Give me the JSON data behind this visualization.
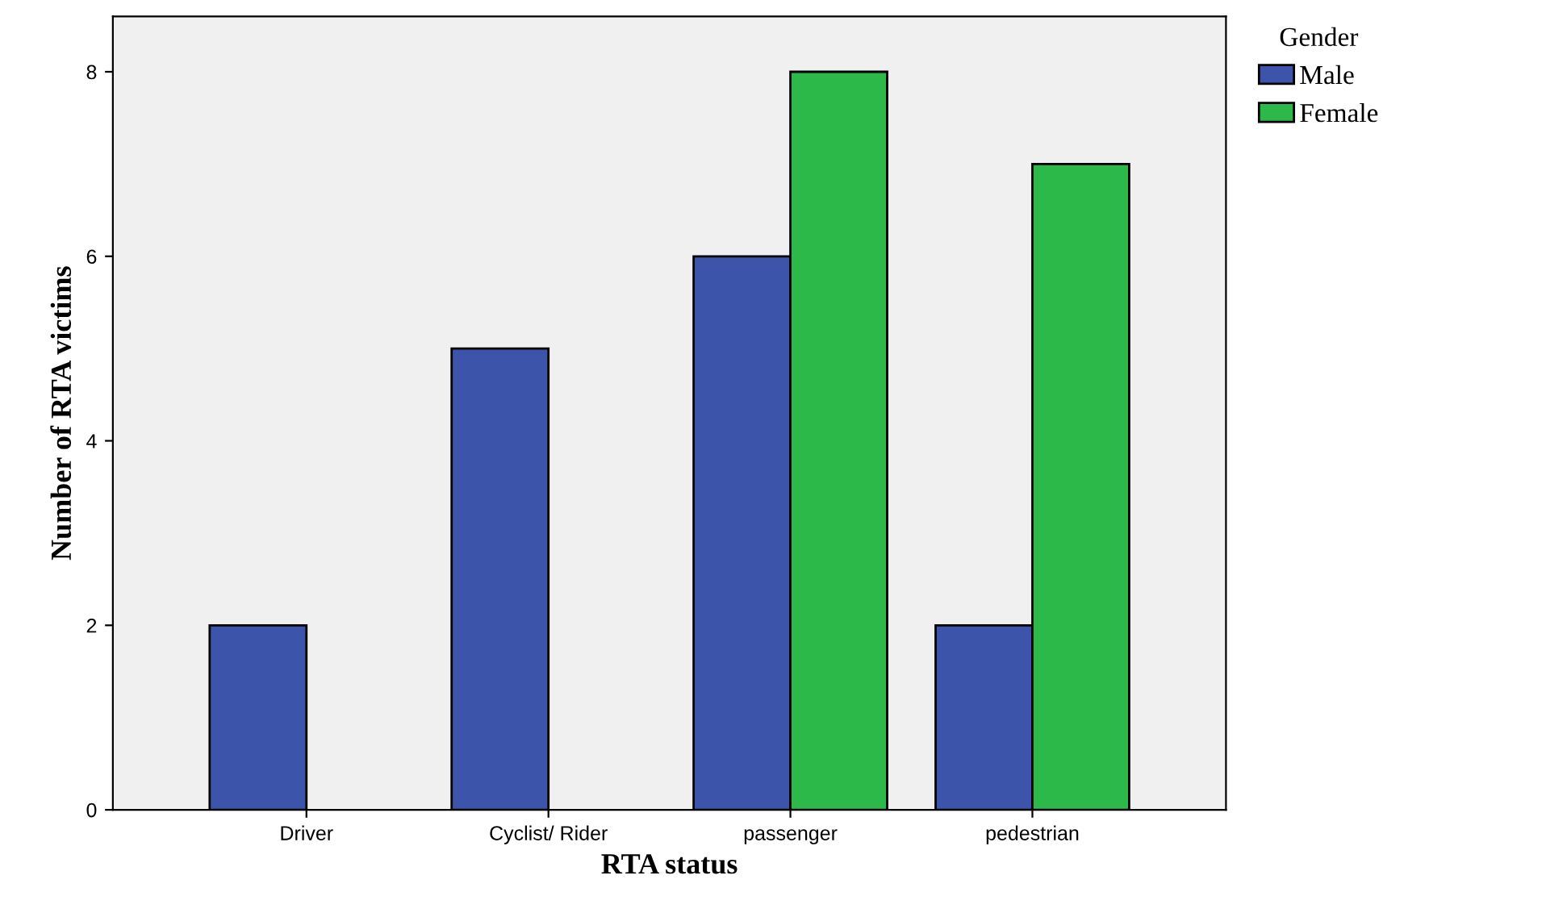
{
  "chart_data": {
    "type": "bar",
    "xlabel": "RTA status",
    "ylabel": "Number of RTA victims",
    "legend_title": "Gender",
    "categories": [
      "Driver",
      "Cyclist/ Rider",
      "passenger",
      "pedestrian"
    ],
    "series": [
      {
        "name": "Male",
        "color": "#3c55aa",
        "values": [
          2,
          5,
          6,
          2
        ]
      },
      {
        "name": "Female",
        "color": "#2db84a",
        "values": [
          null,
          null,
          8,
          7
        ]
      }
    ],
    "ylim": [
      0,
      8.6
    ],
    "yticks": [
      0,
      2,
      4,
      6,
      8
    ],
    "grid": false,
    "legend": "top right"
  }
}
